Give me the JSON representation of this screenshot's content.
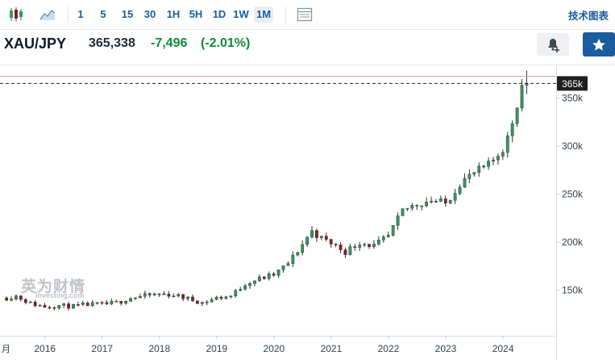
{
  "toolbar": {
    "timeframes": [
      "1",
      "5",
      "15",
      "30",
      "1H",
      "5H",
      "1D",
      "1W",
      "1M"
    ],
    "active_timeframe": "1M",
    "tech_chart_label": "技术图表"
  },
  "quote": {
    "symbol": "XAU/JPY",
    "price": "365,338",
    "change": "-7,496",
    "change_pct": "(-2.01%)"
  },
  "watermark": {
    "cn": "英为财情",
    "en": "Investing.com"
  },
  "colors": {
    "up": "#2e9e5b",
    "down": "#8f1b1b",
    "accent": "#1a5c9e",
    "price_tag": "#1f1f1f",
    "ref_line": "#e0a0a0"
  },
  "chart_data": {
    "type": "candlestick",
    "title": "",
    "xlabel": "",
    "ylabel": "",
    "x_ticks": [
      "2016",
      "2017",
      "2018",
      "2019",
      "2020",
      "2021",
      "2022",
      "2023",
      "2024"
    ],
    "x_tick_years": [
      2016,
      2017,
      2018,
      2019,
      2020,
      2021,
      2022,
      2023,
      2024
    ],
    "left_edge_label": "月",
    "y_ticks": [
      150000,
      200000,
      250000,
      300000,
      350000
    ],
    "y_tick_labels": [
      "150k",
      "200k",
      "250k",
      "300k",
      "350k"
    ],
    "ylim": [
      105000,
      380000
    ],
    "xlim_years": [
      2015.3,
      2024.9
    ],
    "last_price": 365338,
    "last_price_label": "365k",
    "reference_level": 372834,
    "grid": false,
    "anchors": [
      [
        2015.33,
        142000
      ],
      [
        2015.5,
        144000
      ],
      [
        2015.75,
        136000
      ],
      [
        2016.0,
        133000
      ],
      [
        2016.25,
        134000
      ],
      [
        2016.5,
        133000
      ],
      [
        2016.75,
        135000
      ],
      [
        2017.0,
        135000
      ],
      [
        2017.25,
        137000
      ],
      [
        2017.5,
        142000
      ],
      [
        2017.75,
        144000
      ],
      [
        2018.0,
        146000
      ],
      [
        2018.25,
        145000
      ],
      [
        2018.5,
        141000
      ],
      [
        2018.75,
        137000
      ],
      [
        2019.0,
        142000
      ],
      [
        2019.25,
        144000
      ],
      [
        2019.5,
        157000
      ],
      [
        2019.75,
        162000
      ],
      [
        2020.0,
        166000
      ],
      [
        2020.25,
        178000
      ],
      [
        2020.5,
        198000
      ],
      [
        2020.65,
        212000
      ],
      [
        2020.85,
        203000
      ],
      [
        2021.0,
        199000
      ],
      [
        2021.25,
        190000
      ],
      [
        2021.5,
        200000
      ],
      [
        2021.75,
        196000
      ],
      [
        2022.0,
        206000
      ],
      [
        2022.25,
        233000
      ],
      [
        2022.5,
        240000
      ],
      [
        2022.75,
        244000
      ],
      [
        2023.0,
        240000
      ],
      [
        2023.25,
        262000
      ],
      [
        2023.5,
        272000
      ],
      [
        2023.75,
        280000
      ],
      [
        2024.0,
        298000
      ],
      [
        2024.1,
        311000
      ],
      [
        2024.25,
        345000
      ],
      [
        2024.37,
        372834
      ],
      [
        2024.42,
        365338
      ]
    ]
  }
}
